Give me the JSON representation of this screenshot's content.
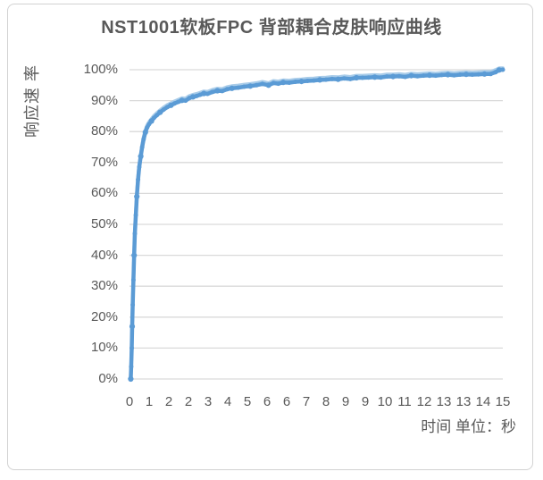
{
  "chart_data": {
    "type": "line",
    "title": "NST1001软板FPC 背部耦合皮肤响应曲线",
    "ylabel": "响应速 率",
    "xlabel": "时间 单位：秒",
    "legend": "none",
    "grid": "horizontal-only",
    "ylim": [
      0,
      100
    ],
    "y_tick_labels": [
      "0%",
      "10%",
      "20%",
      "30%",
      "40%",
      "50%",
      "60%",
      "70%",
      "80%",
      "90%",
      "100%"
    ],
    "x_tick_labels": [
      "0",
      "1",
      "2",
      "2",
      "3",
      "4",
      "5",
      "6",
      "6",
      "7",
      "8",
      "9",
      "9",
      "10",
      "11",
      "12",
      "13",
      "13",
      "14",
      "15"
    ],
    "x_axis_seconds_span": 15.3,
    "line_color": "#5B9BD5",
    "line_highlight_color": "#A9CCE9",
    "gridline_color": "#D9D9D9",
    "text_color": "#595959",
    "series": [
      {
        "points": [
          [
            0.05,
            0
          ],
          [
            0.07,
            4
          ],
          [
            0.09,
            10
          ],
          [
            0.11,
            17
          ],
          [
            0.13,
            24
          ],
          [
            0.16,
            32
          ],
          [
            0.19,
            40
          ],
          [
            0.22,
            47
          ],
          [
            0.26,
            53
          ],
          [
            0.3,
            59
          ],
          [
            0.35,
            64.5
          ],
          [
            0.4,
            68.5
          ],
          [
            0.46,
            72
          ],
          [
            0.52,
            75
          ],
          [
            0.58,
            77.5
          ],
          [
            0.65,
            79.8
          ],
          [
            0.72,
            81.3
          ],
          [
            0.8,
            82.4
          ],
          [
            0.9,
            83.4
          ],
          [
            1.0,
            84.4
          ],
          [
            1.12,
            85.3
          ],
          [
            1.25,
            86.2
          ],
          [
            1.4,
            87.1
          ],
          [
            1.55,
            87.9
          ],
          [
            1.7,
            88.5
          ],
          [
            1.85,
            89.1
          ],
          [
            2.0,
            89.6
          ],
          [
            2.15,
            90.1
          ],
          [
            2.3,
            90.0
          ],
          [
            2.45,
            90.8
          ],
          [
            2.6,
            91.2
          ],
          [
            2.75,
            91.5
          ],
          [
            2.9,
            91.9
          ],
          [
            3.05,
            92.3
          ],
          [
            3.2,
            92.2
          ],
          [
            3.4,
            92.8
          ],
          [
            3.6,
            93.2
          ],
          [
            3.8,
            93.1
          ],
          [
            4.0,
            93.7
          ],
          [
            4.2,
            94.0
          ],
          [
            4.45,
            94.2
          ],
          [
            4.7,
            94.5
          ],
          [
            4.95,
            94.7
          ],
          [
            5.2,
            95.0
          ],
          [
            5.45,
            95.4
          ],
          [
            5.7,
            95.0
          ],
          [
            5.9,
            95.7
          ],
          [
            6.1,
            95.5
          ],
          [
            6.3,
            95.9
          ],
          [
            6.55,
            95.8
          ],
          [
            6.8,
            96.1
          ],
          [
            7.05,
            96.2
          ],
          [
            7.3,
            96.4
          ],
          [
            7.55,
            96.5
          ],
          [
            7.8,
            96.7
          ],
          [
            8.05,
            96.8
          ],
          [
            8.3,
            97.0
          ],
          [
            8.55,
            96.9
          ],
          [
            8.8,
            97.2
          ],
          [
            9.05,
            97.0
          ],
          [
            9.3,
            97.4
          ],
          [
            9.55,
            97.4
          ],
          [
            9.8,
            97.5
          ],
          [
            10.05,
            97.6
          ],
          [
            10.3,
            97.5
          ],
          [
            10.55,
            97.8
          ],
          [
            10.8,
            97.8
          ],
          [
            11.05,
            97.9
          ],
          [
            11.3,
            97.7
          ],
          [
            11.55,
            98.1
          ],
          [
            11.8,
            97.9
          ],
          [
            12.05,
            98.1
          ],
          [
            12.3,
            98.2
          ],
          [
            12.55,
            98.1
          ],
          [
            12.8,
            98.3
          ],
          [
            13.05,
            98.4
          ],
          [
            13.3,
            98.2
          ],
          [
            13.55,
            98.4
          ],
          [
            13.8,
            98.5
          ],
          [
            14.05,
            98.4
          ],
          [
            14.3,
            98.5
          ],
          [
            14.55,
            98.6
          ],
          [
            14.8,
            98.6
          ],
          [
            15.0,
            99.2
          ],
          [
            15.15,
            99.9
          ],
          [
            15.3,
            100
          ]
        ]
      }
    ]
  }
}
